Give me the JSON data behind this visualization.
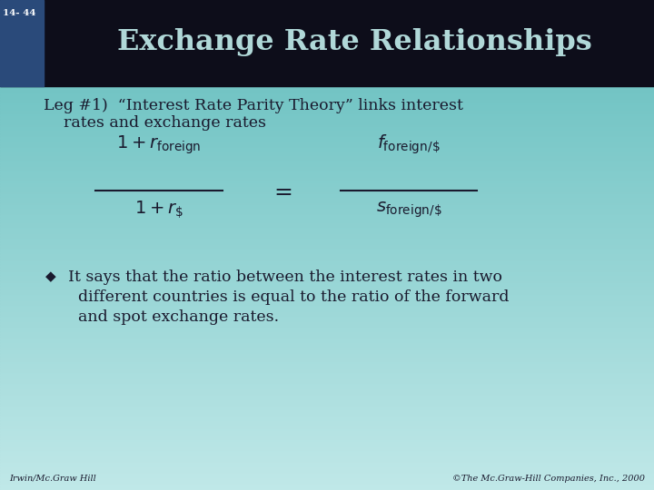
{
  "title": "Exchange Rate Relationships",
  "slide_number": "14- 44",
  "header_bg": "#0d0d1a",
  "header_title_color": "#b0d8d8",
  "body_bg_top": "#72c4c4",
  "body_bg_bottom": "#c0e8e8",
  "sidebar_color": "#2a4a7a",
  "leg_text_line1": "Leg #1)  “Interest Rate Parity Theory” links interest",
  "leg_text_line2": "    rates and exchange rates",
  "bullet_text_line1": "It says that the ratio between the interest rates in two",
  "bullet_text_line2": "  different countries is equal to the ratio of the forward",
  "bullet_text_line3": "  and spot exchange rates.",
  "footer_left": "Irwin/Mc.Graw Hill",
  "footer_right": "©The Mc.Graw-Hill Companies, Inc., 2000",
  "text_color": "#1a1a2e",
  "formula_color": "#1a1a2e"
}
